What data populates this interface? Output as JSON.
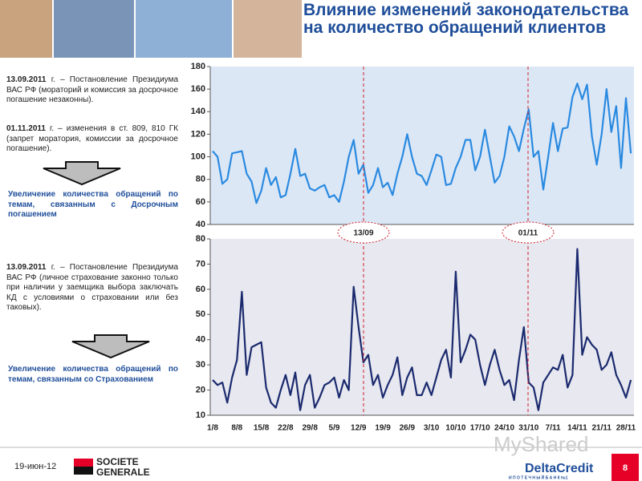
{
  "header": {
    "title": "Влияние изменений законодательства на количество обращений клиентов"
  },
  "left": {
    "block1": {
      "date": "13.09.2011",
      "text": "г. – Постановление Президиума ВАС РФ (мораторий и комиссия за досрочное погашение незаконны)."
    },
    "block2": {
      "date": "01.11.2011",
      "text": "г. – изменения в ст. 809, 810 ГК (запрет моратория, комиссии за досрочное погашение)."
    },
    "result1": "Увеличение количества обращений по темам, связанным с Досрочным погашением",
    "block3": {
      "date": "13.09.2011",
      "text": "г. – Постановление Президиума ВАС РФ (личное страхование законно только при наличии у заемщика выбора заключать КД с условиями о страховании или без таковых)."
    },
    "result2": "Увеличение количества обращений по темам, связанным со Страхованием"
  },
  "annotations": [
    "13/09",
    "01/11"
  ],
  "footer": {
    "date": "19-июн-12",
    "page": "8",
    "logo1_line1": "SOCIETE",
    "logo1_line2": "GENERALE",
    "logo2": "DeltaCredit",
    "logo2_sub": "И П О Т Е Ч Н Ы Й   Б А Н К   №1",
    "watermark": "MyShared"
  },
  "chart_data": [
    {
      "type": "line",
      "color": "#2a8ae0",
      "ylim": [
        40,
        180
      ],
      "yticks": [
        40,
        60,
        80,
        100,
        120,
        140,
        160,
        180
      ],
      "values": [
        105,
        100,
        76,
        80,
        103,
        104,
        105,
        85,
        78,
        59,
        70,
        90,
        75,
        82,
        64,
        66,
        85,
        107,
        83,
        85,
        72,
        70,
        73,
        75,
        64,
        66,
        60,
        78,
        100,
        115,
        85,
        93,
        68,
        75,
        90,
        73,
        77,
        66,
        85,
        100,
        120,
        100,
        85,
        83,
        75,
        88,
        102,
        100,
        75,
        76,
        90,
        100,
        115,
        115,
        88,
        100,
        124,
        100,
        77,
        83,
        100,
        127,
        118,
        105,
        125,
        142,
        100,
        105,
        71,
        100,
        130,
        105,
        125,
        126,
        153,
        165,
        151,
        164,
        118,
        93,
        120,
        160,
        122,
        145,
        90,
        152,
        103
      ]
    },
    {
      "type": "line",
      "color": "#1b2a6e",
      "ylim": [
        10,
        80
      ],
      "yticks": [
        10,
        20,
        30,
        40,
        50,
        60,
        70,
        80
      ],
      "categories": [
        "1/8",
        null,
        null,
        null,
        null,
        "8/8",
        null,
        null,
        null,
        null,
        "15/8",
        null,
        null,
        null,
        null,
        "22/8",
        null,
        null,
        null,
        null,
        "29/8",
        null,
        null,
        null,
        null,
        "5/9",
        null,
        null,
        null,
        null,
        "12/9",
        null,
        null,
        null,
        null,
        "19/9",
        null,
        null,
        null,
        null,
        "26/9",
        null,
        null,
        null,
        null,
        "3/10",
        null,
        null,
        null,
        null,
        "10/10",
        null,
        null,
        null,
        null,
        "17/10",
        null,
        null,
        null,
        null,
        "24/10",
        null,
        null,
        null,
        null,
        "31/10",
        null,
        null,
        null,
        null,
        "7/11",
        null,
        null,
        null,
        null,
        "14/11",
        null,
        null,
        null,
        null,
        "21/11",
        null,
        null,
        null,
        null,
        "28/11",
        null
      ],
      "values": [
        24,
        22,
        23,
        15,
        25,
        32,
        59,
        26,
        37,
        38,
        39,
        21,
        15,
        13,
        20,
        26,
        18,
        27,
        12,
        22,
        26,
        13,
        17,
        22,
        23,
        25,
        17,
        24,
        20,
        61,
        45,
        31,
        34,
        22,
        26,
        17,
        22,
        26,
        33,
        18,
        25,
        29,
        18,
        18,
        23,
        18,
        25,
        32,
        36,
        25,
        67,
        31,
        36,
        42,
        40,
        30,
        22,
        30,
        36,
        28,
        22,
        24,
        16,
        32,
        45,
        23,
        21,
        12,
        23,
        26,
        29,
        28,
        34,
        21,
        26,
        76,
        34,
        41,
        38,
        36,
        28,
        30,
        35,
        26,
        22,
        17,
        24
      ]
    }
  ]
}
